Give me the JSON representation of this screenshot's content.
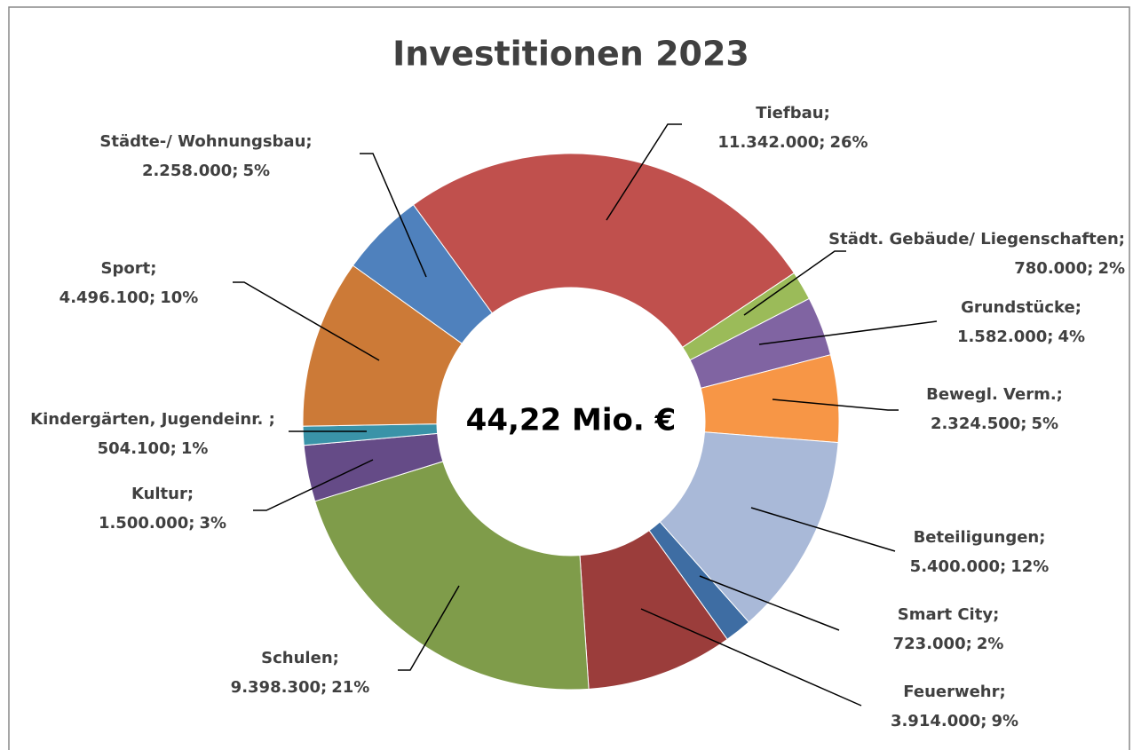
{
  "chart_data": {
    "type": "donut",
    "title": "Investitionen 2023",
    "center_label": "44,22 Mio. €",
    "categories": [
      "Tiefbau;",
      "Städt. Gebäude/ Liegenschaften;",
      "Grundstücke;",
      "Bewegl. Verm.;",
      "Beteiligungen;",
      "Smart City;",
      "Feuerwehr;",
      "Schulen;",
      "Kultur;",
      "Kindergärten, Jugendeinr. ;",
      "Sport;",
      "Städte-/ Wohnungsbau;"
    ],
    "values": [
      11342000,
      780000,
      1582000,
      2324500,
      5400000,
      723000,
      3914000,
      9398300,
      1500000,
      504100,
      4496100,
      2258000
    ],
    "value_labels": [
      "11.342.000;",
      "780.000;",
      "1.582.000;",
      "2.324.500;",
      "5.400.000;",
      "723.000;",
      "3.914.000;",
      "9.398.300;",
      "1.500.000;",
      "504.100;",
      "4.496.100;",
      "2.258.000;"
    ],
    "percent_labels": [
      "26%",
      "2%",
      "4%",
      "5%",
      "12%",
      "2%",
      "9%",
      "21%",
      "3%",
      "1%",
      "10%",
      "5%"
    ],
    "colors": [
      "#c0504d",
      "#9bbb59",
      "#8064a2",
      "#f79646",
      "#a9b9d8",
      "#3e6da3",
      "#9b3d3b",
      "#7f9c4a",
      "#654b87",
      "#3a93a8",
      "#cc7a37",
      "#4f81bd"
    ]
  }
}
